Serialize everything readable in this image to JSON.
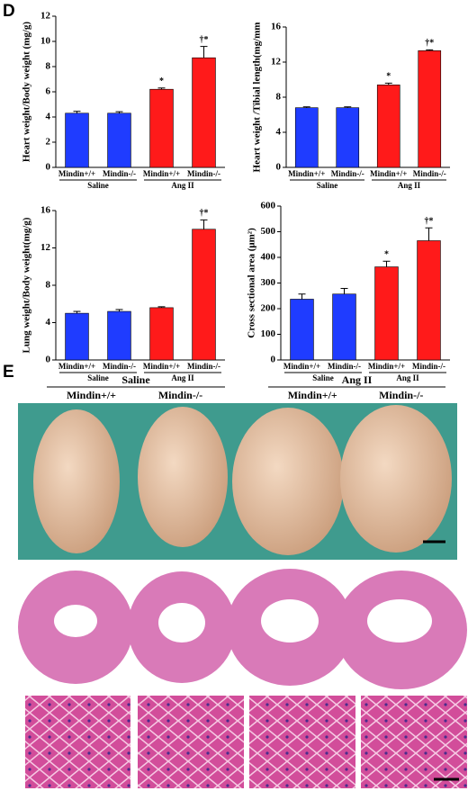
{
  "panels": {
    "d": "D",
    "e": "E"
  },
  "chart_data": [
    {
      "type": "bar",
      "ylabel": "Heart weight/Body weight (mg/g)",
      "categories": [
        "Mindin+/+",
        "Mindin-/-",
        "Mindin+/+",
        "Mindin-/-"
      ],
      "groups": [
        "Saline",
        "Ang II"
      ],
      "values": [
        4.3,
        4.3,
        6.2,
        8.7
      ],
      "errors": [
        0.15,
        0.12,
        0.1,
        0.9
      ],
      "annotations": [
        null,
        null,
        "*",
        "†*"
      ],
      "colors": [
        "#1f3cff",
        "#1f3cff",
        "#ff1a1a",
        "#ff1a1a"
      ],
      "ylim": [
        0,
        12
      ],
      "yticks": [
        0,
        2,
        4,
        6,
        8,
        10,
        12
      ]
    },
    {
      "type": "bar",
      "ylabel": "Heart weight /Tibial length(mg/mm",
      "categories": [
        "Mindin+/+",
        "Mindin-/-",
        "Mindin+/+",
        "Mindin-/-"
      ],
      "groups": [
        "Saline",
        "Ang II"
      ],
      "values": [
        6.8,
        6.8,
        9.4,
        13.3
      ],
      "errors": [
        0.1,
        0.1,
        0.2,
        0.1
      ],
      "annotations": [
        null,
        null,
        "*",
        "†*"
      ],
      "colors": [
        "#1f3cff",
        "#1f3cff",
        "#ff1a1a",
        "#ff1a1a"
      ],
      "ylim": [
        0,
        16
      ],
      "yticks": [
        0,
        4,
        8,
        12,
        16
      ]
    },
    {
      "type": "bar",
      "ylabel": "Lung weight/Body weight(mg/g)",
      "categories": [
        "Mindin+/+",
        "Mindin-/-",
        "Mindin+/+",
        "Mindin-/-"
      ],
      "groups": [
        "Saline",
        "Ang II"
      ],
      "values": [
        5.0,
        5.2,
        5.6,
        14.0
      ],
      "errors": [
        0.2,
        0.2,
        0.1,
        1.0
      ],
      "annotations": [
        null,
        null,
        null,
        "†*"
      ],
      "colors": [
        "#1f3cff",
        "#1f3cff",
        "#ff1a1a",
        "#ff1a1a"
      ],
      "ylim": [
        0,
        16
      ],
      "yticks": [
        0,
        4,
        8,
        12,
        16
      ]
    },
    {
      "type": "bar",
      "ylabel": "Cross sectional area (μm²)",
      "categories": [
        "Mindin+/+",
        "Mindin-/-",
        "Mindin+/+",
        "Mindin-/-"
      ],
      "groups": [
        "Saline",
        "Ang II"
      ],
      "values": [
        237,
        257,
        363,
        465
      ],
      "errors": [
        20,
        22,
        22,
        50
      ],
      "annotations": [
        null,
        null,
        "*",
        "†*"
      ],
      "colors": [
        "#1f3cff",
        "#1f3cff",
        "#ff1a1a",
        "#ff1a1a"
      ],
      "ylim": [
        0,
        600
      ],
      "yticks": [
        0,
        100,
        200,
        300,
        400,
        500,
        600
      ]
    }
  ],
  "panel_e": {
    "groups": [
      {
        "name": "Saline",
        "columns": [
          "Mindin+/+",
          "Mindin-/-"
        ]
      },
      {
        "name": "Ang II",
        "columns": [
          "Mindin+/+",
          "Mindin-/-"
        ]
      }
    ]
  }
}
